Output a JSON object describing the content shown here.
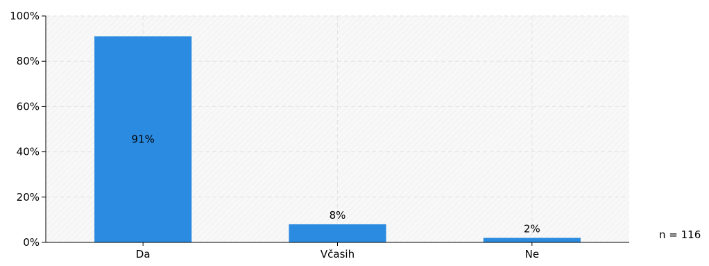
{
  "chart_data": {
    "type": "bar",
    "categories": [
      "Da",
      "Včasih",
      "Ne"
    ],
    "values": [
      91,
      8,
      2
    ],
    "data_labels": [
      "91%",
      "8%",
      "2%"
    ],
    "ylim": [
      0,
      100
    ],
    "yticks": [
      0,
      20,
      40,
      60,
      80,
      100
    ],
    "ytick_labels": [
      "0%",
      "20%",
      "40%",
      "60%",
      "80%",
      "100%"
    ],
    "xlabel": "",
    "ylabel": "",
    "title": "",
    "grid": true,
    "legend": false,
    "bar_color": "#2b8be0",
    "plot_background": "#f8f8f8",
    "grid_color": "#e2e2e2"
  },
  "annotation": {
    "sample_size": "n = 116"
  }
}
